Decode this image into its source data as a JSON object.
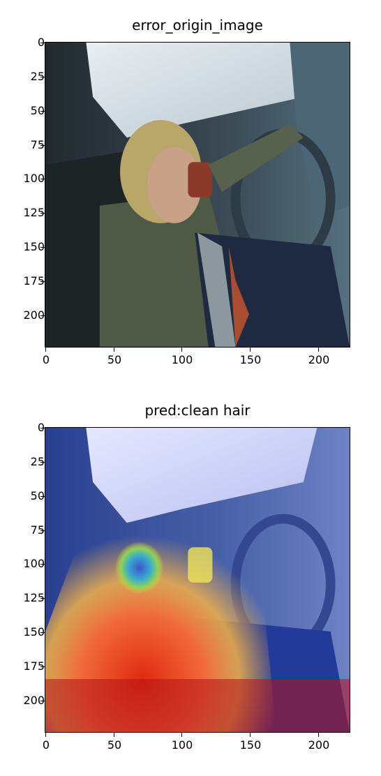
{
  "chart_data": [
    {
      "type": "image",
      "title": "error_origin_image",
      "xlim": [
        0,
        224
      ],
      "ylim": [
        224,
        0
      ],
      "xticks": [
        0,
        50,
        100,
        150,
        200
      ],
      "yticks": [
        0,
        25,
        50,
        75,
        100,
        125,
        150,
        175,
        200
      ],
      "content": "photo"
    },
    {
      "type": "heatmap",
      "title": "pred:clean hair",
      "xlim": [
        0,
        224
      ],
      "ylim": [
        224,
        0
      ],
      "xticks": [
        0,
        50,
        100,
        150,
        200
      ],
      "yticks": [
        0,
        25,
        50,
        75,
        100,
        125,
        150,
        175,
        200
      ],
      "colormap": "jet",
      "content": "photo-with-heatmap"
    }
  ]
}
